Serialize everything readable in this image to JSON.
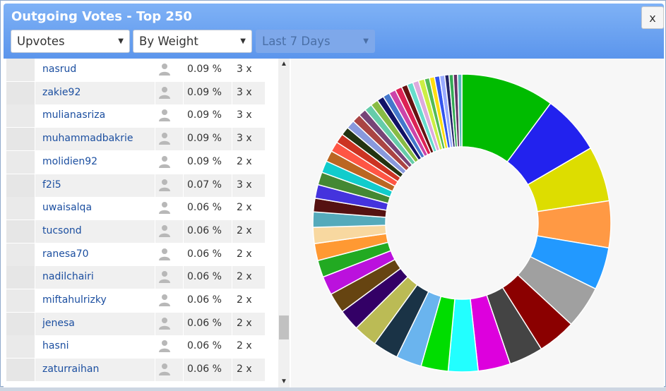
{
  "dialog": {
    "title": "Outgoing Votes - Top 250",
    "close_label": "x"
  },
  "filters": {
    "type": {
      "value": "Upvotes"
    },
    "sort": {
      "value": "By Weight"
    },
    "period": {
      "value": "Last 7 Days",
      "disabled": true
    }
  },
  "rows": [
    {
      "name": "nasrud",
      "pct": "0.09 %",
      "count": "3 x"
    },
    {
      "name": "zakie92",
      "pct": "0.09 %",
      "count": "3 x"
    },
    {
      "name": "mulianasriza",
      "pct": "0.09 %",
      "count": "3 x"
    },
    {
      "name": "muhammadbakrie",
      "pct": "0.09 %",
      "count": "3 x"
    },
    {
      "name": "molidien92",
      "pct": "0.09 %",
      "count": "2 x"
    },
    {
      "name": "f2i5",
      "pct": "0.07 %",
      "count": "3 x"
    },
    {
      "name": "uwaisalqa",
      "pct": "0.06 %",
      "count": "2 x"
    },
    {
      "name": "tucsond",
      "pct": "0.06 %",
      "count": "2 x"
    },
    {
      "name": "ranesa70",
      "pct": "0.06 %",
      "count": "2 x"
    },
    {
      "name": "nadilchairi",
      "pct": "0.06 %",
      "count": "2 x"
    },
    {
      "name": "miftahulrizky",
      "pct": "0.06 %",
      "count": "2 x"
    },
    {
      "name": "jenesa",
      "pct": "0.06 %",
      "count": "2 x"
    },
    {
      "name": "hasni",
      "pct": "0.06 %",
      "count": "2 x"
    },
    {
      "name": "zaturraihan",
      "pct": "0.06 %",
      "count": "2 x"
    }
  ],
  "icons": {
    "avatar": "user-silhouette-icon",
    "scroll_up": "chevron-up-icon",
    "scroll_down": "chevron-down-icon"
  },
  "chart_data": {
    "type": "pie",
    "donut": true,
    "title": "",
    "slices": [
      {
        "value": 11.0,
        "color": "#00bb00"
      },
      {
        "value": 7.0,
        "color": "#2222ee"
      },
      {
        "value": 6.5,
        "color": "#dddd00"
      },
      {
        "value": 5.5,
        "color": "#ff9944"
      },
      {
        "value": 5.0,
        "color": "#2299ff"
      },
      {
        "value": 5.0,
        "color": "#a0a0a0"
      },
      {
        "value": 4.5,
        "color": "#8b0000"
      },
      {
        "value": 4.0,
        "color": "#444444"
      },
      {
        "value": 3.8,
        "color": "#dd00dd"
      },
      {
        "value": 3.5,
        "color": "#22ffff"
      },
      {
        "value": 3.2,
        "color": "#00dd00"
      },
      {
        "value": 3.0,
        "color": "#6ab4ee"
      },
      {
        "value": 3.0,
        "color": "#1a3346"
      },
      {
        "value": 2.8,
        "color": "#bbbb55"
      },
      {
        "value": 2.5,
        "color": "#330066"
      },
      {
        "value": 2.4,
        "color": "#664411"
      },
      {
        "value": 2.2,
        "color": "#bb11dd"
      },
      {
        "value": 2.0,
        "color": "#22aa22"
      },
      {
        "value": 2.0,
        "color": "#ff9933"
      },
      {
        "value": 1.9,
        "color": "#f8d8a0"
      },
      {
        "value": 1.8,
        "color": "#55aabb"
      },
      {
        "value": 1.6,
        "color": "#551111"
      },
      {
        "value": 1.6,
        "color": "#4433dd"
      },
      {
        "value": 1.5,
        "color": "#448833"
      },
      {
        "value": 1.4,
        "color": "#11cccc"
      },
      {
        "value": 1.3,
        "color": "#bb6622"
      },
      {
        "value": 1.2,
        "color": "#ff5544"
      },
      {
        "value": 1.1,
        "color": "#cc3322"
      },
      {
        "value": 1.0,
        "color": "#223311"
      },
      {
        "value": 1.0,
        "color": "#8899dd"
      },
      {
        "value": 1.0,
        "color": "#aa4444"
      },
      {
        "value": 0.9,
        "color": "#774477"
      },
      {
        "value": 0.9,
        "color": "#66ccaa"
      },
      {
        "value": 0.9,
        "color": "#88bb44"
      },
      {
        "value": 0.8,
        "color": "#111166"
      },
      {
        "value": 0.8,
        "color": "#4477cc"
      },
      {
        "value": 0.8,
        "color": "#cc44aa"
      },
      {
        "value": 0.8,
        "color": "#dd2255"
      },
      {
        "value": 0.7,
        "color": "#661111"
      },
      {
        "value": 0.7,
        "color": "#66ddcc"
      },
      {
        "value": 0.7,
        "color": "#ddaadd"
      },
      {
        "value": 0.7,
        "color": "#ccee44"
      },
      {
        "value": 0.6,
        "color": "#55bb55"
      },
      {
        "value": 0.6,
        "color": "#ffdd11"
      },
      {
        "value": 0.6,
        "color": "#3355ee"
      },
      {
        "value": 0.6,
        "color": "#99aaff"
      },
      {
        "value": 0.5,
        "color": "#222266"
      },
      {
        "value": 0.5,
        "color": "#33aa55"
      },
      {
        "value": 0.5,
        "color": "#663366"
      },
      {
        "value": 0.5,
        "color": "#55bbbb"
      }
    ]
  }
}
